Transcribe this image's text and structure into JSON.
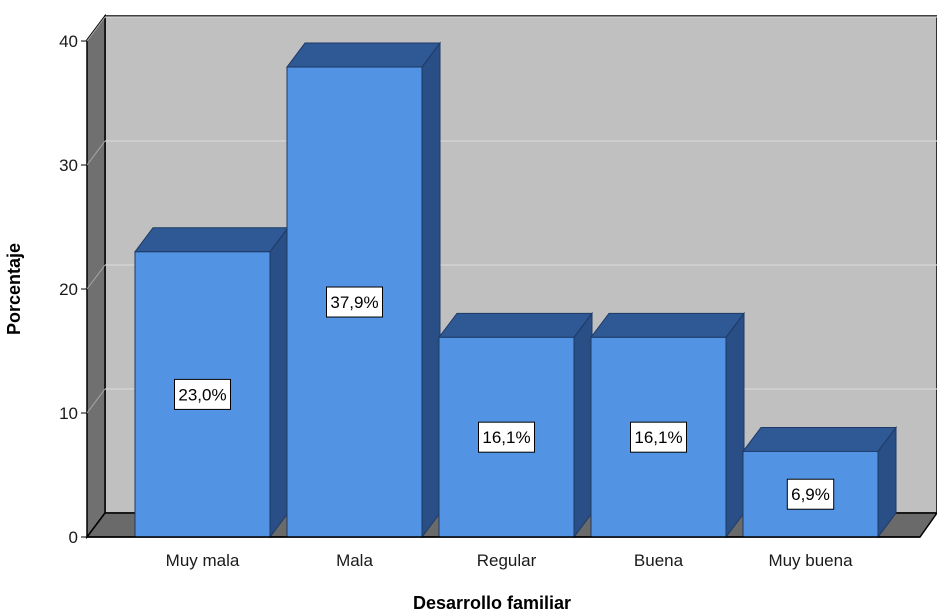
{
  "chart_data": {
    "type": "bar",
    "style": "3d",
    "categories": [
      "Muy mala",
      "Mala",
      "Regular",
      "Buena",
      "Muy buena"
    ],
    "values": [
      23.0,
      37.9,
      16.1,
      16.1,
      6.9
    ],
    "data_labels": [
      "23,0%",
      "37,9%",
      "16,1%",
      "16,1%",
      "6,9%"
    ],
    "xlabel": "Desarrollo familiar",
    "ylabel": "Porcentaje",
    "yticks": [
      "0",
      "10",
      "20",
      "30",
      "40"
    ],
    "ylim": [
      0,
      40
    ],
    "grid": true,
    "colors": {
      "bar_front": "#5293e3",
      "bar_top": "#2f5994",
      "bar_side": "#2a4f86",
      "bar_edge": "#1e3a66",
      "back_wall": "#c0c0c0",
      "left_wall": "#707070",
      "floor": "#6a6a6a",
      "grid": "#d6d6d6"
    }
  }
}
